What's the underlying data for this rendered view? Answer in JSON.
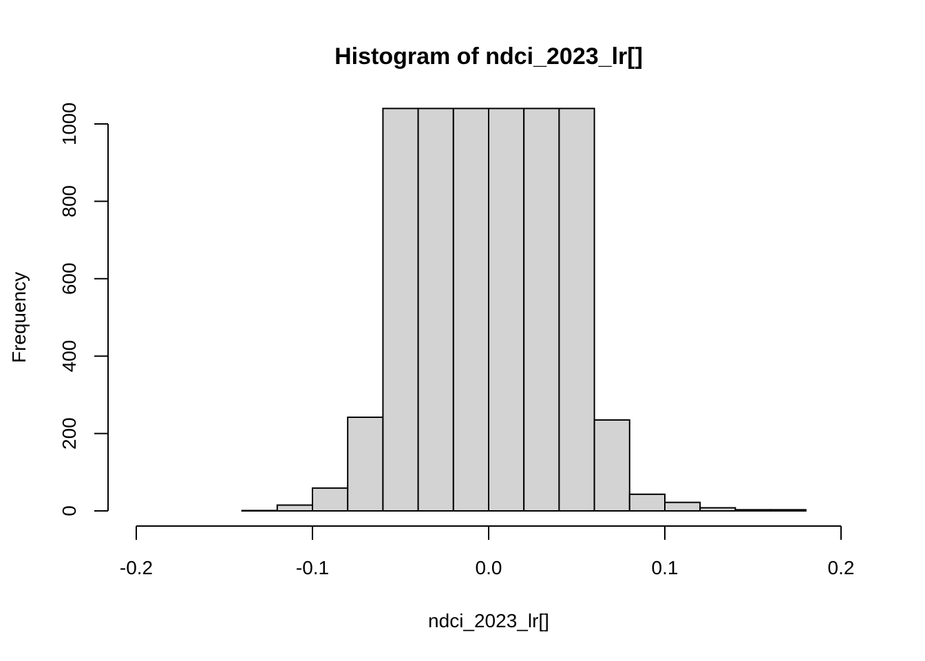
{
  "chart_data": {
    "type": "bar",
    "title": "Histogram of ndci_2023_lr[]",
    "xlabel": "ndci_2023_lr[]",
    "ylabel": "Frequency",
    "xlim": [
      -0.2,
      0.2
    ],
    "ylim": [
      0,
      1000
    ],
    "x_ticks": [
      {
        "value": -0.2,
        "label": "-0.2"
      },
      {
        "value": -0.1,
        "label": "-0.1"
      },
      {
        "value": 0.0,
        "label": "0.0"
      },
      {
        "value": 0.1,
        "label": "0.1"
      },
      {
        "value": 0.2,
        "label": "0.2"
      }
    ],
    "y_ticks": [
      {
        "value": 0,
        "label": "0"
      },
      {
        "value": 200,
        "label": "200"
      },
      {
        "value": 400,
        "label": "400"
      },
      {
        "value": 600,
        "label": "600"
      },
      {
        "value": 800,
        "label": "800"
      },
      {
        "value": 1000,
        "label": "1000"
      }
    ],
    "bins": [
      {
        "start": -0.14,
        "end": -0.12,
        "count": 1
      },
      {
        "start": -0.12,
        "end": -0.1,
        "count": 15
      },
      {
        "start": -0.1,
        "end": -0.08,
        "count": 59
      },
      {
        "start": -0.08,
        "end": -0.06,
        "count": 242
      },
      {
        "start": -0.06,
        "end": -0.04,
        "count": 1040
      },
      {
        "start": -0.04,
        "end": -0.02,
        "count": 1040
      },
      {
        "start": -0.02,
        "end": 0.0,
        "count": 1040
      },
      {
        "start": 0.0,
        "end": 0.02,
        "count": 1040
      },
      {
        "start": 0.02,
        "end": 0.04,
        "count": 1040
      },
      {
        "start": 0.04,
        "end": 0.06,
        "count": 1040
      },
      {
        "start": 0.06,
        "end": 0.08,
        "count": 235
      },
      {
        "start": 0.08,
        "end": 0.1,
        "count": 43
      },
      {
        "start": 0.1,
        "end": 0.12,
        "count": 22
      },
      {
        "start": 0.12,
        "end": 0.14,
        "count": 8
      },
      {
        "start": 0.14,
        "end": 0.16,
        "count": 3
      },
      {
        "start": 0.16,
        "end": 0.18,
        "count": 3
      }
    ],
    "colors": {
      "bar_fill": "#d3d3d3",
      "bar_stroke": "#000000"
    }
  }
}
